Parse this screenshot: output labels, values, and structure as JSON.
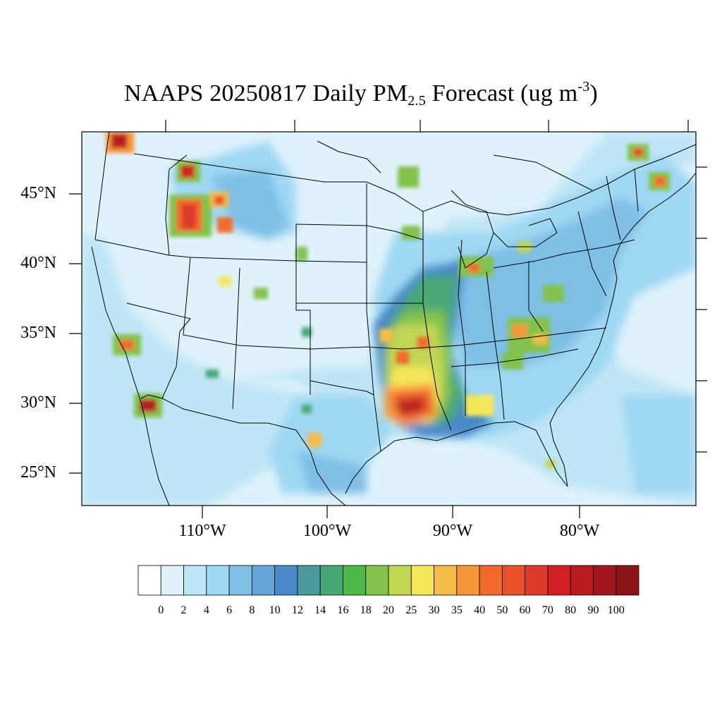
{
  "title": {
    "prefix": "NAAPS 20250817 Daily PM",
    "sub": "2.5",
    "mid": " Forecast (ug m",
    "sup": "-3",
    "suffix": ")"
  },
  "axes": {
    "lat_labels": [
      "45°N",
      "40°N",
      "35°N",
      "30°N",
      "25°N"
    ],
    "lon_labels": [
      "110°W",
      "100°W",
      "90°W",
      "80°W"
    ]
  },
  "colorbar": {
    "colors": [
      "#ffffff",
      "#dff2fb",
      "#bfe6f6",
      "#9fd8f3",
      "#7fbfe6",
      "#64a6d9",
      "#4a89c8",
      "#4a9a9a",
      "#48a875",
      "#4cb848",
      "#82c24d",
      "#c2d654",
      "#f6e65a",
      "#f6bc4a",
      "#f6963a",
      "#f26a2a",
      "#e8502c",
      "#dc3a2a",
      "#d02024",
      "#b81a20",
      "#a0161c",
      "#8a1418"
    ],
    "labels": [
      "0",
      "2",
      "4",
      "6",
      "8",
      "10",
      "12",
      "14",
      "16",
      "18",
      "20",
      "25",
      "30",
      "35",
      "40",
      "50",
      "60",
      "70",
      "80",
      "90",
      "100"
    ]
  }
}
